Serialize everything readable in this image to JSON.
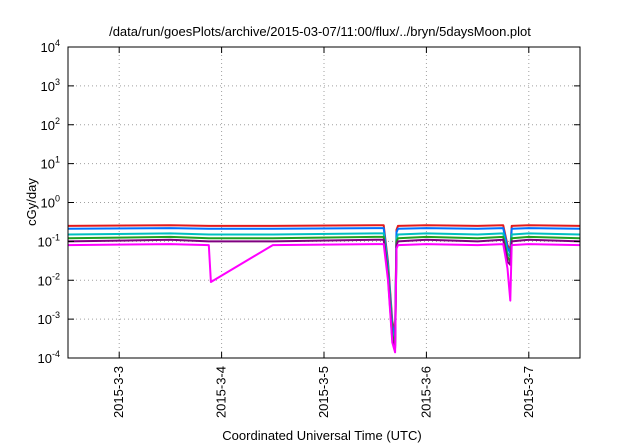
{
  "chart_data": {
    "type": "line",
    "title": "/data/run/goesPlots/archive/2015-03-07/11:00/flux/../bryn/5daysMoon.plot",
    "xlabel": "Coordinated Universal Time (UTC)",
    "ylabel": "cGy/day",
    "yscale": "log",
    "ylim": [
      0.0001,
      10000
    ],
    "xlim": [
      "2015-03-02T12:00",
      "2015-03-07T12:00"
    ],
    "grid": true,
    "legend": "none",
    "x_tick_labels": [
      "2015-3-3",
      "2015-3-4",
      "2015-3-5",
      "2015-3-6",
      "2015-3-7"
    ],
    "x_ticks": [
      "2015-03-03T00:00",
      "2015-03-04T00:00",
      "2015-03-05T00:00",
      "2015-03-06T00:00",
      "2015-03-07T00:00"
    ],
    "y_ticks": [
      {
        "base": "10",
        "exp": "-4",
        "value": 0.0001
      },
      {
        "base": "10",
        "exp": "-3",
        "value": 0.001
      },
      {
        "base": "10",
        "exp": "-2",
        "value": 0.01
      },
      {
        "base": "10",
        "exp": "-1",
        "value": 0.1
      },
      {
        "base": "10",
        "exp": "0",
        "value": 1
      },
      {
        "base": "10",
        "exp": "1",
        "value": 10
      },
      {
        "base": "10",
        "exp": "2",
        "value": 100
      },
      {
        "base": "10",
        "exp": "3",
        "value": 1000
      },
      {
        "base": "10",
        "exp": "4",
        "value": 10000
      }
    ],
    "sample_times": [
      "2015-03-02T12:00",
      "2015-03-03T12:00",
      "2015-03-03T21:00",
      "2015-03-03T21:30",
      "2015-03-04T12:00",
      "2015-03-05T12:00",
      "2015-03-05T14:00",
      "2015-03-05T15:00",
      "2015-03-05T16:00",
      "2015-03-05T16:40",
      "2015-03-05T17:00",
      "2015-03-05T17:20",
      "2015-03-06T00:00",
      "2015-03-06T12:00",
      "2015-03-06T18:00",
      "2015-03-06T19:00",
      "2015-03-06T19:40",
      "2015-03-06T20:00",
      "2015-03-07T00:00",
      "2015-03-07T12:00"
    ],
    "series": [
      {
        "color": "#e41a1c",
        "values": [
          0.25,
          0.26,
          0.25,
          0.25,
          0.25,
          0.26,
          0.26,
          0.03,
          0.0009,
          0.0004,
          0.2,
          0.25,
          0.26,
          0.25,
          0.26,
          0.08,
          0.06,
          0.25,
          0.26,
          0.25
        ]
      },
      {
        "color": "#0072ff",
        "values": [
          0.21,
          0.22,
          0.21,
          0.21,
          0.21,
          0.22,
          0.22,
          0.025,
          0.0007,
          0.0003,
          0.17,
          0.21,
          0.22,
          0.21,
          0.22,
          0.07,
          0.05,
          0.21,
          0.22,
          0.21
        ]
      },
      {
        "color": "#00c0c0",
        "values": [
          0.15,
          0.16,
          0.15,
          0.15,
          0.15,
          0.16,
          0.16,
          0.02,
          0.0005,
          0.00025,
          0.12,
          0.15,
          0.16,
          0.15,
          0.16,
          0.05,
          0.04,
          0.15,
          0.16,
          0.15
        ]
      },
      {
        "color": "#20a020",
        "values": [
          0.12,
          0.13,
          0.12,
          0.12,
          0.12,
          0.13,
          0.13,
          0.015,
          0.0004,
          0.0002,
          0.1,
          0.12,
          0.13,
          0.12,
          0.13,
          0.04,
          0.03,
          0.12,
          0.13,
          0.12
        ]
      },
      {
        "color": "#800080",
        "values": [
          0.1,
          0.11,
          0.1,
          0.1,
          0.1,
          0.11,
          0.11,
          0.012,
          0.0003,
          0.00018,
          0.08,
          0.1,
          0.11,
          0.1,
          0.11,
          0.03,
          0.025,
          0.1,
          0.11,
          0.1
        ]
      },
      {
        "color": "#ff00ff",
        "values": [
          0.08,
          0.085,
          0.08,
          0.009,
          0.08,
          0.085,
          0.085,
          0.01,
          0.00025,
          0.00014,
          0.065,
          0.08,
          0.085,
          0.08,
          0.085,
          0.02,
          0.003,
          0.08,
          0.085,
          0.08
        ]
      }
    ]
  }
}
